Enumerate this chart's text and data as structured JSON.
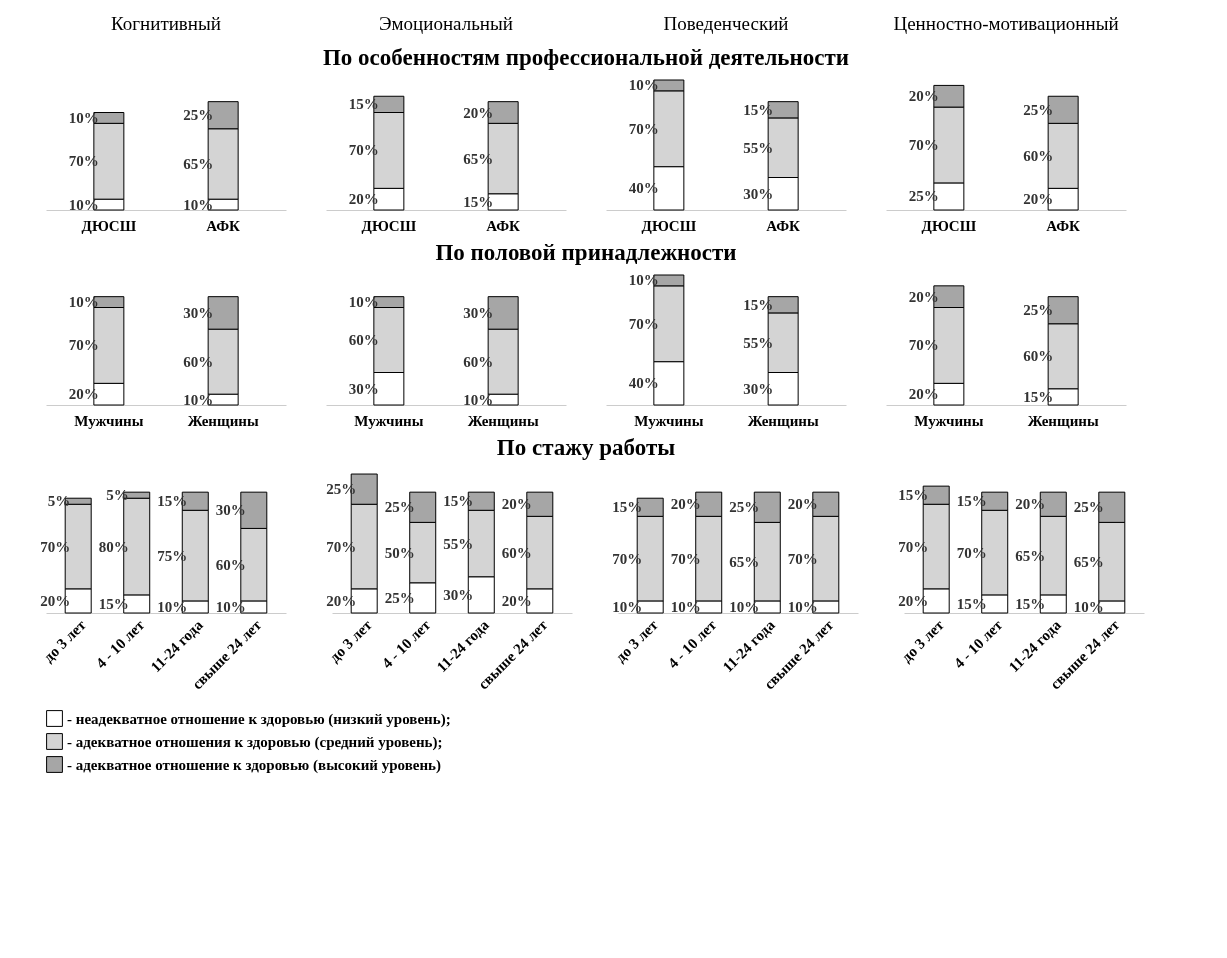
{
  "chart_data": [
    {
      "type": "other",
      "annotations": [
        "Когнитивный",
        "Эмоциональный",
        "Поведенческий",
        "Ценностно-мотивационный"
      ]
    },
    {
      "type": "other",
      "title": "По особенностям профессиональной деятельности"
    },
    {
      "type": "bar",
      "stacked": true,
      "legend": "bottom",
      "categories": [
        "ДЮСШ",
        "АФК"
      ],
      "series": [
        {
          "name": "- неадекватное отношение к здоровью (низкий уровень);",
          "color": "#ffffff",
          "values": [
            10,
            10
          ],
          "value_labels": [
            "10%",
            "10%"
          ]
        },
        {
          "name": "- адекватное отношения к здоровью (средний уровень);",
          "color": "#d4d4d4",
          "values": [
            70,
            65
          ],
          "value_labels": [
            "70%",
            "65%"
          ]
        },
        {
          "name": "- адекватное отношение к здоровью (высокий уровень)",
          "color": "#a6a6a6",
          "values": [
            10,
            25
          ],
          "value_labels": [
            "10%",
            "25%"
          ]
        }
      ]
    },
    {
      "type": "bar",
      "stacked": true,
      "legend": "bottom",
      "categories": [
        "ДЮСШ",
        "АФК"
      ],
      "series": [
        {
          "name": "- неадекватное отношение к здоровью (низкий уровень);",
          "color": "#ffffff",
          "values": [
            20,
            15
          ],
          "value_labels": [
            "20%",
            "15%"
          ]
        },
        {
          "name": "- адекватное отношения к здоровью (средний уровень);",
          "color": "#d4d4d4",
          "values": [
            70,
            65
          ],
          "value_labels": [
            "70%",
            "65%"
          ]
        },
        {
          "name": "- адекватное отношение к здоровью (высокий уровень)",
          "color": "#a6a6a6",
          "values": [
            15,
            20
          ],
          "value_labels": [
            "15%",
            "20%"
          ]
        }
      ]
    },
    {
      "type": "bar",
      "stacked": true,
      "legend": "bottom",
      "categories": [
        "ДЮСШ",
        "АФК"
      ],
      "series": [
        {
          "name": "- неадекватное отношение к здоровью (низкий уровень);",
          "color": "#ffffff",
          "values": [
            40,
            30
          ],
          "value_labels": [
            "40%",
            "30%"
          ]
        },
        {
          "name": "- адекватное отношения к здоровью (средний уровень);",
          "color": "#d4d4d4",
          "values": [
            70,
            55
          ],
          "value_labels": [
            "70%",
            "55%"
          ]
        },
        {
          "name": "- адекватное отношение к здоровью (высокий уровень)",
          "color": "#a6a6a6",
          "values": [
            10,
            15
          ],
          "value_labels": [
            "10%",
            "15%"
          ]
        }
      ]
    },
    {
      "type": "bar",
      "stacked": true,
      "legend": "bottom",
      "categories": [
        "ДЮСШ",
        "АФК"
      ],
      "series": [
        {
          "name": "- неадекватное отношение к здоровью (низкий уровень);",
          "color": "#ffffff",
          "values": [
            25,
            20
          ],
          "value_labels": [
            "25%",
            "20%"
          ]
        },
        {
          "name": "- адекватное отношения к здоровью (средний уровень);",
          "color": "#d4d4d4",
          "values": [
            70,
            60
          ],
          "value_labels": [
            "70%",
            "60%"
          ]
        },
        {
          "name": "- адекватное отношение к здоровью (высокий уровень)",
          "color": "#a6a6a6",
          "values": [
            20,
            25
          ],
          "value_labels": [
            "20%",
            "25%"
          ]
        }
      ]
    },
    {
      "type": "other",
      "title": "По половой принадлежности"
    },
    {
      "type": "bar",
      "stacked": true,
      "legend": "bottom",
      "categories": [
        "Мужчины",
        "Женщины"
      ],
      "series": [
        {
          "name": "- неадекватное отношение к здоровью (низкий уровень);",
          "color": "#ffffff",
          "values": [
            20,
            10
          ],
          "value_labels": [
            "20%",
            "10%"
          ]
        },
        {
          "name": "- адекватное отношения к здоровью (средний уровень);",
          "color": "#d4d4d4",
          "values": [
            70,
            60
          ],
          "value_labels": [
            "70%",
            "60%"
          ]
        },
        {
          "name": "- адекватное отношение к здоровью (высокий уровень)",
          "color": "#a6a6a6",
          "values": [
            10,
            30
          ],
          "value_labels": [
            "10%",
            "30%"
          ]
        }
      ]
    },
    {
      "type": "bar",
      "stacked": true,
      "legend": "bottom",
      "categories": [
        "Мужчины",
        "Женщины"
      ],
      "series": [
        {
          "name": "- неадекватное отношение к здоровью (низкий уровень);",
          "color": "#ffffff",
          "values": [
            30,
            10
          ],
          "value_labels": [
            "30%",
            "10%"
          ]
        },
        {
          "name": "- адекватное отношения к здоровью (средний уровень);",
          "color": "#d4d4d4",
          "values": [
            60,
            60
          ],
          "value_labels": [
            "60%",
            "60%"
          ]
        },
        {
          "name": "- адекватное отношение к здоровью (высокий уровень)",
          "color": "#a6a6a6",
          "values": [
            10,
            30
          ],
          "value_labels": [
            "10%",
            "30%"
          ]
        }
      ]
    },
    {
      "type": "bar",
      "stacked": true,
      "legend": "bottom",
      "categories": [
        "Мужчины",
        "Женщины"
      ],
      "series": [
        {
          "name": "- неадекватное отношение к здоровью (низкий уровень);",
          "color": "#ffffff",
          "values": [
            40,
            30
          ],
          "value_labels": [
            "40%",
            "30%"
          ]
        },
        {
          "name": "- адекватное отношения к здоровью (средний уровень);",
          "color": "#d4d4d4",
          "values": [
            70,
            55
          ],
          "value_labels": [
            "70%",
            "55%"
          ]
        },
        {
          "name": "- адекватное отношение к здоровью (высокий уровень)",
          "color": "#a6a6a6",
          "values": [
            10,
            15
          ],
          "value_labels": [
            "10%",
            "15%"
          ]
        }
      ]
    },
    {
      "type": "bar",
      "stacked": true,
      "legend": "bottom",
      "categories": [
        "Мужчины",
        "Женщины"
      ],
      "series": [
        {
          "name": "- неадекватное отношение к здоровью (низкий уровень);",
          "color": "#ffffff",
          "values": [
            20,
            15
          ],
          "value_labels": [
            "20%",
            "15%"
          ]
        },
        {
          "name": "- адекватное отношения к здоровью (средний уровень);",
          "color": "#d4d4d4",
          "values": [
            70,
            60
          ],
          "value_labels": [
            "70%",
            "60%"
          ]
        },
        {
          "name": "- адекватное отношение к здоровью (высокий уровень)",
          "color": "#a6a6a6",
          "values": [
            20,
            25
          ],
          "value_labels": [
            "20%",
            "25%"
          ]
        }
      ]
    },
    {
      "type": "other",
      "title": "По стажу работы"
    },
    {
      "type": "bar",
      "stacked": true,
      "legend": "bottom",
      "categories": [
        "до 3 лет",
        "4 - 10 лет",
        "11-24 года",
        "свыше 24 лет"
      ],
      "series": [
        {
          "name": "- неадекватное отношение к здоровью (низкий уровень);",
          "color": "#ffffff",
          "values": [
            20,
            15,
            10,
            10
          ],
          "value_labels": [
            "20%",
            "15%",
            "10%",
            "10%"
          ]
        },
        {
          "name": "- адекватное отношения к здоровью (средний уровень);",
          "color": "#d4d4d4",
          "values": [
            70,
            80,
            75,
            60
          ],
          "value_labels": [
            "70%",
            "80%",
            "75%",
            "60%"
          ]
        },
        {
          "name": "- адекватное отношение к здоровью (высокий уровень)",
          "color": "#a6a6a6",
          "values": [
            5,
            5,
            15,
            30
          ],
          "value_labels": [
            "5%",
            "5%",
            "15%",
            "30%"
          ]
        }
      ]
    },
    {
      "type": "bar",
      "stacked": true,
      "legend": "bottom",
      "categories": [
        "до 3 лет",
        "4 - 10 лет",
        "11-24 года",
        "свыше 24 лет"
      ],
      "series": [
        {
          "name": "- неадекватное отношение к здоровью (низкий уровень);",
          "color": "#ffffff",
          "values": [
            20,
            25,
            30,
            20
          ],
          "value_labels": [
            "20%",
            "25%",
            "30%",
            "20%"
          ]
        },
        {
          "name": "- адекватное отношения к здоровью (средний уровень);",
          "color": "#d4d4d4",
          "values": [
            70,
            50,
            55,
            60
          ],
          "value_labels": [
            "70%",
            "50%",
            "55%",
            "60%"
          ]
        },
        {
          "name": "- адекватное отношение к здоровью (высокий уровень)",
          "color": "#a6a6a6",
          "values": [
            25,
            25,
            15,
            20
          ],
          "value_labels": [
            "25%",
            "25%",
            "15%",
            "20%"
          ]
        }
      ]
    },
    {
      "type": "bar",
      "stacked": true,
      "legend": "bottom",
      "categories": [
        "до 3 лет",
        "4 - 10 лет",
        "11-24 года",
        "свыше 24 лет"
      ],
      "series": [
        {
          "name": "- неадекватное отношение к здоровью (низкий уровень);",
          "color": "#ffffff",
          "values": [
            10,
            10,
            10,
            10
          ],
          "value_labels": [
            "10%",
            "10%",
            "10%",
            "10%"
          ]
        },
        {
          "name": "- адекватное отношения к здоровью (средний уровень);",
          "color": "#d4d4d4",
          "values": [
            70,
            70,
            65,
            70
          ],
          "value_labels": [
            "70%",
            "70%",
            "65%",
            "70%"
          ]
        },
        {
          "name": "- адекватное отношение к здоровью (высокий уровень)",
          "color": "#a6a6a6",
          "values": [
            15,
            20,
            25,
            20
          ],
          "value_labels": [
            "15%",
            "20%",
            "25%",
            "20%"
          ]
        }
      ]
    },
    {
      "type": "bar",
      "stacked": true,
      "legend": "bottom",
      "categories": [
        "до 3 лет",
        "4 - 10 лет",
        "11-24 года",
        "свыше 24 лет"
      ],
      "series": [
        {
          "name": "- неадекватное отношение к здоровью (низкий уровень);",
          "color": "#ffffff",
          "values": [
            20,
            15,
            15,
            10
          ],
          "value_labels": [
            "20%",
            "15%",
            "15%",
            "10%"
          ]
        },
        {
          "name": "- адекватное отношения к здоровью (средний уровень);",
          "color": "#d4d4d4",
          "values": [
            70,
            70,
            65,
            65
          ],
          "value_labels": [
            "70%",
            "70%",
            "65%",
            "65%"
          ]
        },
        {
          "name": "- адекватное отношение к здоровью (высокий уровень)",
          "color": "#a6a6a6",
          "values": [
            15,
            15,
            20,
            25
          ],
          "value_labels": [
            "15%",
            "15%",
            "20%",
            "25%"
          ]
        }
      ]
    }
  ]
}
